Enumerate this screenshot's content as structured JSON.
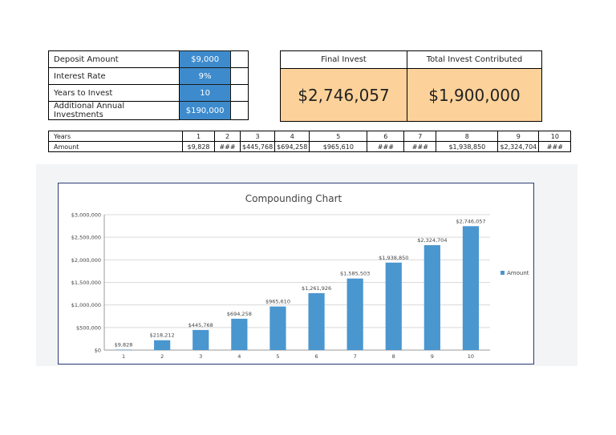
{
  "inputs": [
    {
      "label": "Deposit Amount",
      "value": "$9,000"
    },
    {
      "label": "Interest Rate",
      "value": "9%"
    },
    {
      "label": "Years to Invest",
      "value": "10"
    },
    {
      "label": "Additional Annual Investments",
      "value": "$190,000"
    }
  ],
  "summary": {
    "final_label": "Final Invest",
    "total_label": "Total Invest Contributed",
    "final_value": "$2,746,057",
    "total_value": "$1,900,000"
  },
  "years_table": {
    "row1_label": "Years",
    "row2_label": "Amount",
    "years": [
      "1",
      "2",
      "3",
      "4",
      "5",
      "6",
      "7",
      "8",
      "9",
      "10"
    ],
    "amounts": [
      "$9,828",
      "###",
      "$445,768",
      "$694,258",
      "$965,610",
      "###",
      "###",
      "$1,938,850",
      "$2,324,704",
      "###"
    ]
  },
  "colors": {
    "input_fill": "#3d8bcd",
    "summary_fill": "#fdd29a",
    "bar": "#4a96cf"
  },
  "chart_data": {
    "type": "bar",
    "title": "Compounding Chart",
    "categories": [
      "1",
      "2",
      "3",
      "4",
      "5",
      "6",
      "7",
      "8",
      "9",
      "10"
    ],
    "series": [
      {
        "name": "Amount",
        "values": [
          9828,
          218212,
          445768,
          694258,
          965610,
          1261926,
          1585503,
          1938850,
          2324704,
          2746057
        ]
      }
    ],
    "data_labels": [
      "$9,828",
      "$218,212",
      "$445,768",
      "$694,258",
      "$965,610",
      "$1,261,926",
      "$1,585,503",
      "$1,938,850",
      "$2,324,704",
      "$2,746,057"
    ],
    "y_ticks": [
      0,
      500000,
      1000000,
      1500000,
      2000000,
      2500000,
      3000000
    ],
    "y_tick_labels": [
      "$0",
      "$500,000",
      "$1,000,000",
      "$1,500,000",
      "$2,000,000",
      "$2,500,000",
      "$3,000,000"
    ],
    "ylim": [
      0,
      3000000
    ],
    "grid": true,
    "legend_position": "right"
  }
}
